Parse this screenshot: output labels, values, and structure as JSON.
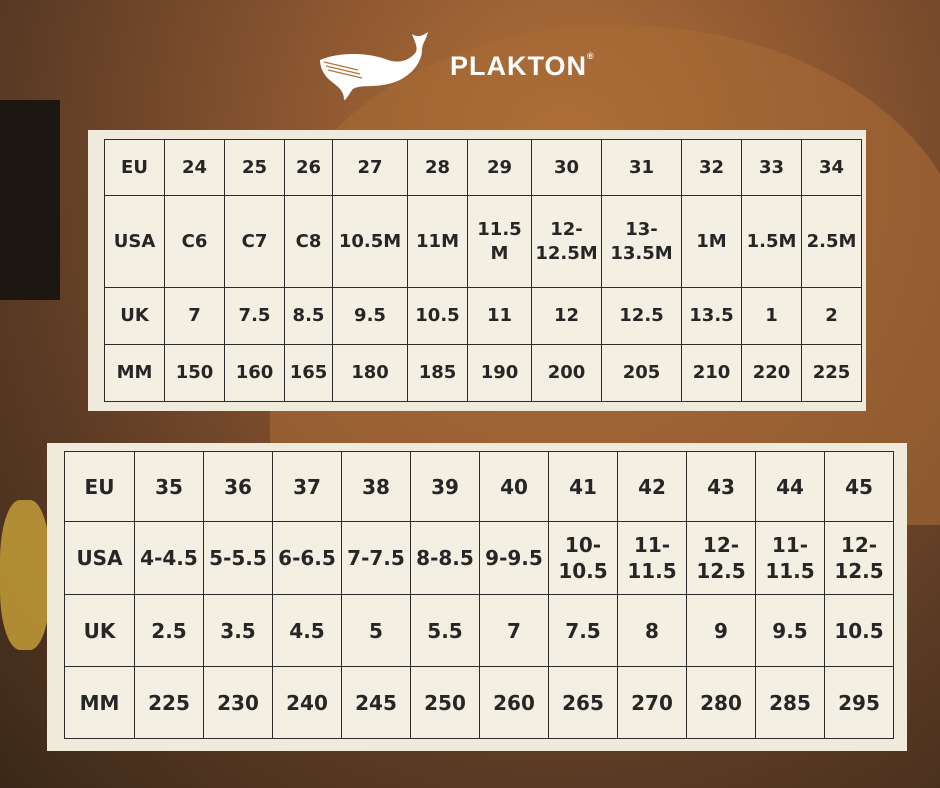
{
  "brand": {
    "name": "PLAKTON",
    "mark": "®",
    "logo_icon": "whale-icon"
  },
  "colors": {
    "panel": "#efeadb",
    "cell": "#f3efe2",
    "text": "#262626",
    "border": "#2b2b2b"
  },
  "tables": [
    {
      "rows": [
        {
          "label": "EU",
          "values": [
            "24",
            "25",
            "26",
            "27",
            "28",
            "29",
            "30",
            "31",
            "32",
            "33",
            "34"
          ]
        },
        {
          "label": "USA",
          "values": [
            "C6",
            "C7",
            "C8",
            "10.5M",
            "11M",
            "11.5 M",
            "12-12.5M",
            "13-13.5M",
            "1M",
            "1.5M",
            "2.5M"
          ]
        },
        {
          "label": "UK",
          "values": [
            "7",
            "7.5",
            "8.5",
            "9.5",
            "10.5",
            "11",
            "12",
            "12.5",
            "13.5",
            "1",
            "2"
          ]
        },
        {
          "label": "MM",
          "values": [
            "150",
            "160",
            "165",
            "180",
            "185",
            "190",
            "200",
            "205",
            "210",
            "220",
            "225"
          ]
        }
      ]
    },
    {
      "rows": [
        {
          "label": "EU",
          "values": [
            "35",
            "36",
            "37",
            "38",
            "39",
            "40",
            "41",
            "42",
            "43",
            "44",
            "45"
          ]
        },
        {
          "label": "USA",
          "values": [
            "4-4.5",
            "5-5.5",
            "6-6.5",
            "7-7.5",
            "8-8.5",
            "9-9.5",
            "10-10.5",
            "11-11.5",
            "12-12.5",
            "11-11.5",
            "12-12.5"
          ]
        },
        {
          "label": "UK",
          "values": [
            "2.5",
            "3.5",
            "4.5",
            "5",
            "5.5",
            "7",
            "7.5",
            "8",
            "9",
            "9.5",
            "10.5"
          ]
        },
        {
          "label": "MM",
          "values": [
            "225",
            "230",
            "240",
            "245",
            "250",
            "260",
            "265",
            "270",
            "280",
            "285",
            "295"
          ]
        }
      ]
    }
  ]
}
